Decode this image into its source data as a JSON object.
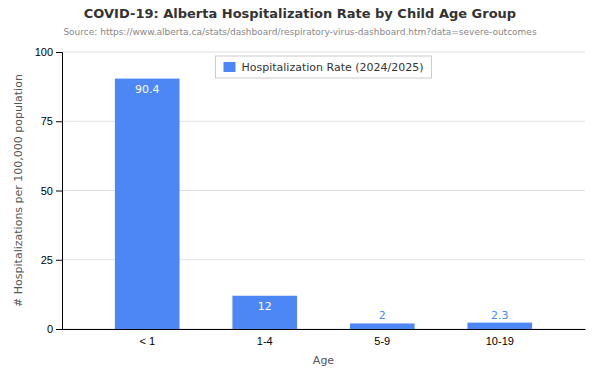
{
  "chart_data": {
    "type": "bar",
    "title": "COVID-19: Alberta Hospitalization Rate by Child Age Group",
    "subtitle": "Source: https://www.alberta.ca/stats/dashboard/respiratory-virus-dashboard.htm?data=severe-outcomes",
    "xlabel": "Age",
    "ylabel": "# Hospitalizations per 100,000 population",
    "categories": [
      "< 1",
      "1-4",
      "5-9",
      "10-19"
    ],
    "series": [
      {
        "name": "Hospitalization Rate (2024/2025)",
        "color": "#4d86f5",
        "values": [
          90.4,
          12,
          2,
          2.3
        ]
      }
    ],
    "ylim": [
      0,
      100
    ],
    "yticks": [
      0,
      25,
      50,
      75,
      100
    ],
    "grid": true,
    "legend": "top",
    "data_labels": true
  }
}
